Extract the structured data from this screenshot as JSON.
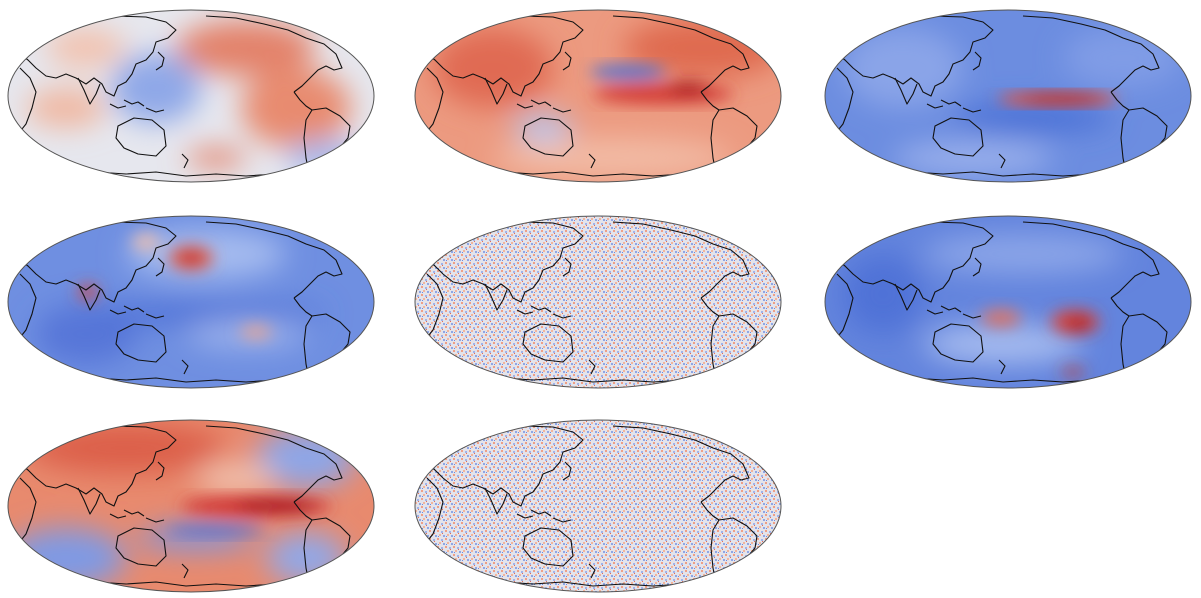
{
  "figure": {
    "panels": [
      {
        "id": "p1",
        "base": "neutral",
        "features": [
          "warm-east-pacific",
          "warm-americas",
          "cool-west-pacific"
        ]
      },
      {
        "id": "p2",
        "base": "warm",
        "features": [
          "warm-equatorial-east-pacific",
          "cool-north-pacific-band"
        ]
      },
      {
        "id": "p3",
        "base": "cool",
        "features": [
          "warm-equatorial-tongue"
        ]
      },
      {
        "id": "p4",
        "base": "cool",
        "features": [
          "warm-north-pacific-blob",
          "warm-maritime-continent"
        ]
      },
      {
        "id": "p5",
        "base": "noise",
        "features": []
      },
      {
        "id": "p6",
        "base": "cool",
        "features": [
          "warm-south-pacific-blobs"
        ]
      },
      {
        "id": "p7",
        "base": "warm",
        "features": [
          "warm-equatorial-pacific",
          "cool-south-pacific"
        ]
      },
      {
        "id": "p8",
        "base": "noise",
        "features": []
      }
    ],
    "colors": {
      "neutral": "#e3e6ee",
      "cool": "#5b7fe0",
      "cool_light": "#a9bff0",
      "warm": "#e8795c",
      "warm_light": "#f3bca6",
      "warm_strong": "#c0272d",
      "coastline": "#111111"
    }
  }
}
